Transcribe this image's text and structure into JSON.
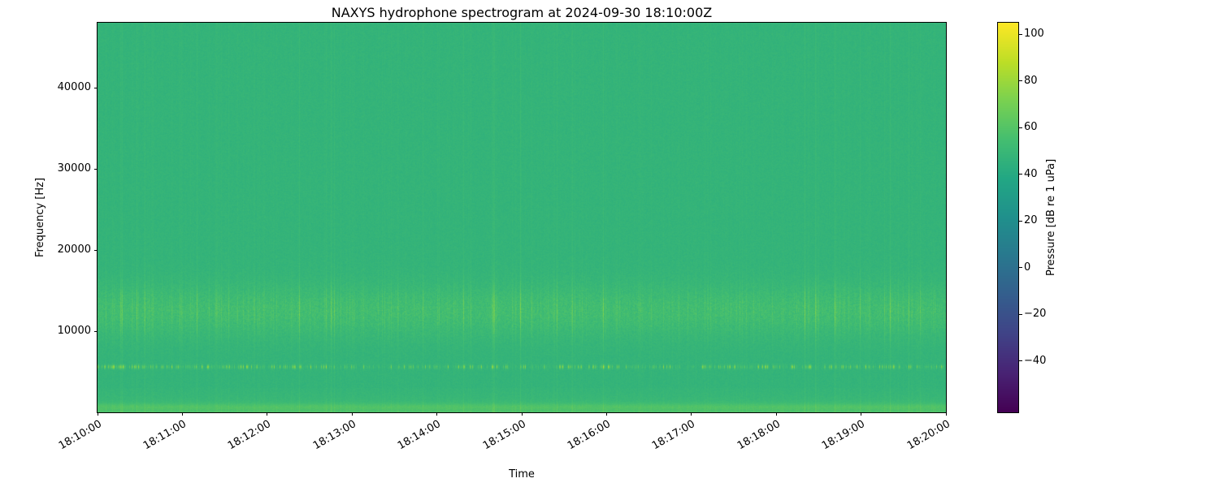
{
  "chart_data": {
    "type": "heatmap",
    "title": "NAXYS hydrophone spectrogram at 2024-09-30 18:10:00Z",
    "xlabel": "Time",
    "ylabel": "Frequency [Hz]",
    "colorbar_label": "Pressure [dB re 1 uPa]",
    "colormap": "viridis",
    "grid": false,
    "colorbar_position": "right",
    "x_tick_labels": [
      "18:10:00",
      "18:11:00",
      "18:12:00",
      "18:13:00",
      "18:14:00",
      "18:15:00",
      "18:16:00",
      "18:17:00",
      "18:18:00",
      "18:19:00",
      "18:20:00"
    ],
    "y_ticks": [
      10000,
      20000,
      30000,
      40000
    ],
    "y_range_hz": [
      0,
      48000
    ],
    "colorbar_ticks": [
      100,
      80,
      60,
      40,
      20,
      0,
      -20,
      -40
    ],
    "colorbar_range": [
      -62,
      105
    ],
    "features": [
      {
        "name": "broadband-background",
        "freq_hz": [
          0,
          48000
        ],
        "level_db": 48
      },
      {
        "name": "mid-band-energy",
        "freq_hz": [
          9000,
          16000
        ],
        "level_db": 62
      },
      {
        "name": "tonal-spikes",
        "freq_hz": [
          5200,
          6000
        ],
        "level_db": 80
      },
      {
        "name": "low-frequency-band",
        "freq_hz": [
          0,
          1500
        ],
        "level_db": 62
      },
      {
        "name": "vertical-transient-striping",
        "freq_hz": [
          0,
          48000
        ],
        "level_db": 55
      }
    ]
  }
}
